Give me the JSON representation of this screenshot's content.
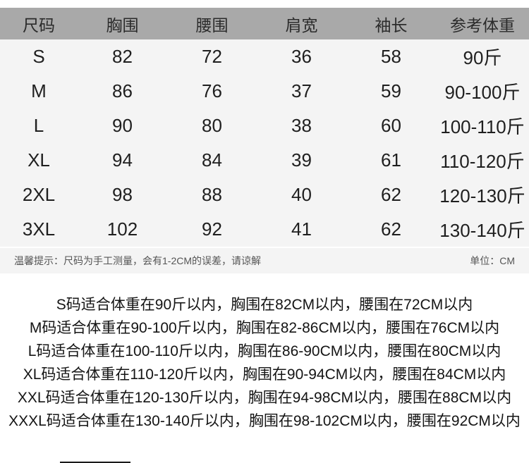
{
  "colors": {
    "page_bg": "#ffffff",
    "header_bg": "#a9a9a9",
    "header_text": "#2b2b2b",
    "body_bg": "#f4f4f4",
    "body_text": "#1f1f1f",
    "note_text": "#555555",
    "paragraph_text": "#141414"
  },
  "chart_data": {
    "type": "table",
    "title": "",
    "unit": "CM",
    "columns": [
      "尺码",
      "胸围",
      "腰围",
      "肩宽",
      "袖长",
      "参考体重"
    ],
    "rows": [
      [
        "S",
        "82",
        "72",
        "36",
        "58",
        "90斤"
      ],
      [
        "M",
        "86",
        "76",
        "37",
        "59",
        "90-100斤"
      ],
      [
        "L",
        "90",
        "80",
        "38",
        "60",
        "100-110斤"
      ],
      [
        "XL",
        "94",
        "84",
        "39",
        "61",
        "110-120斤"
      ],
      [
        "2XL",
        "98",
        "88",
        "40",
        "62",
        "120-130斤"
      ],
      [
        "3XL",
        "102",
        "92",
        "41",
        "62",
        "130-140斤"
      ]
    ]
  },
  "footnote": {
    "left": "温馨提示：尺码为手工测量，会有1-2CM的误差，请谅解",
    "right": "单位：CM"
  },
  "size_notes": [
    "S码适合体重在90斤以内，胸围在82CM以内，腰围在72CM以内",
    "M码适合体重在90-100斤以内，胸围在82-86CM以内，腰围在76CM以内",
    "L码适合体重在100-110斤以内，胸围在86-90CM以内，腰围在80CM以内",
    "XL码适合体重在110-120斤以内，胸围在90-94CM以内，腰围在84CM以内",
    "XXL码适合体重在120-130斤以内，胸围在94-98CM以内，腰围在88CM以内",
    "XXXL码适合体重在130-140斤以内，胸围在98-102CM以内，腰围在92CM以内"
  ]
}
